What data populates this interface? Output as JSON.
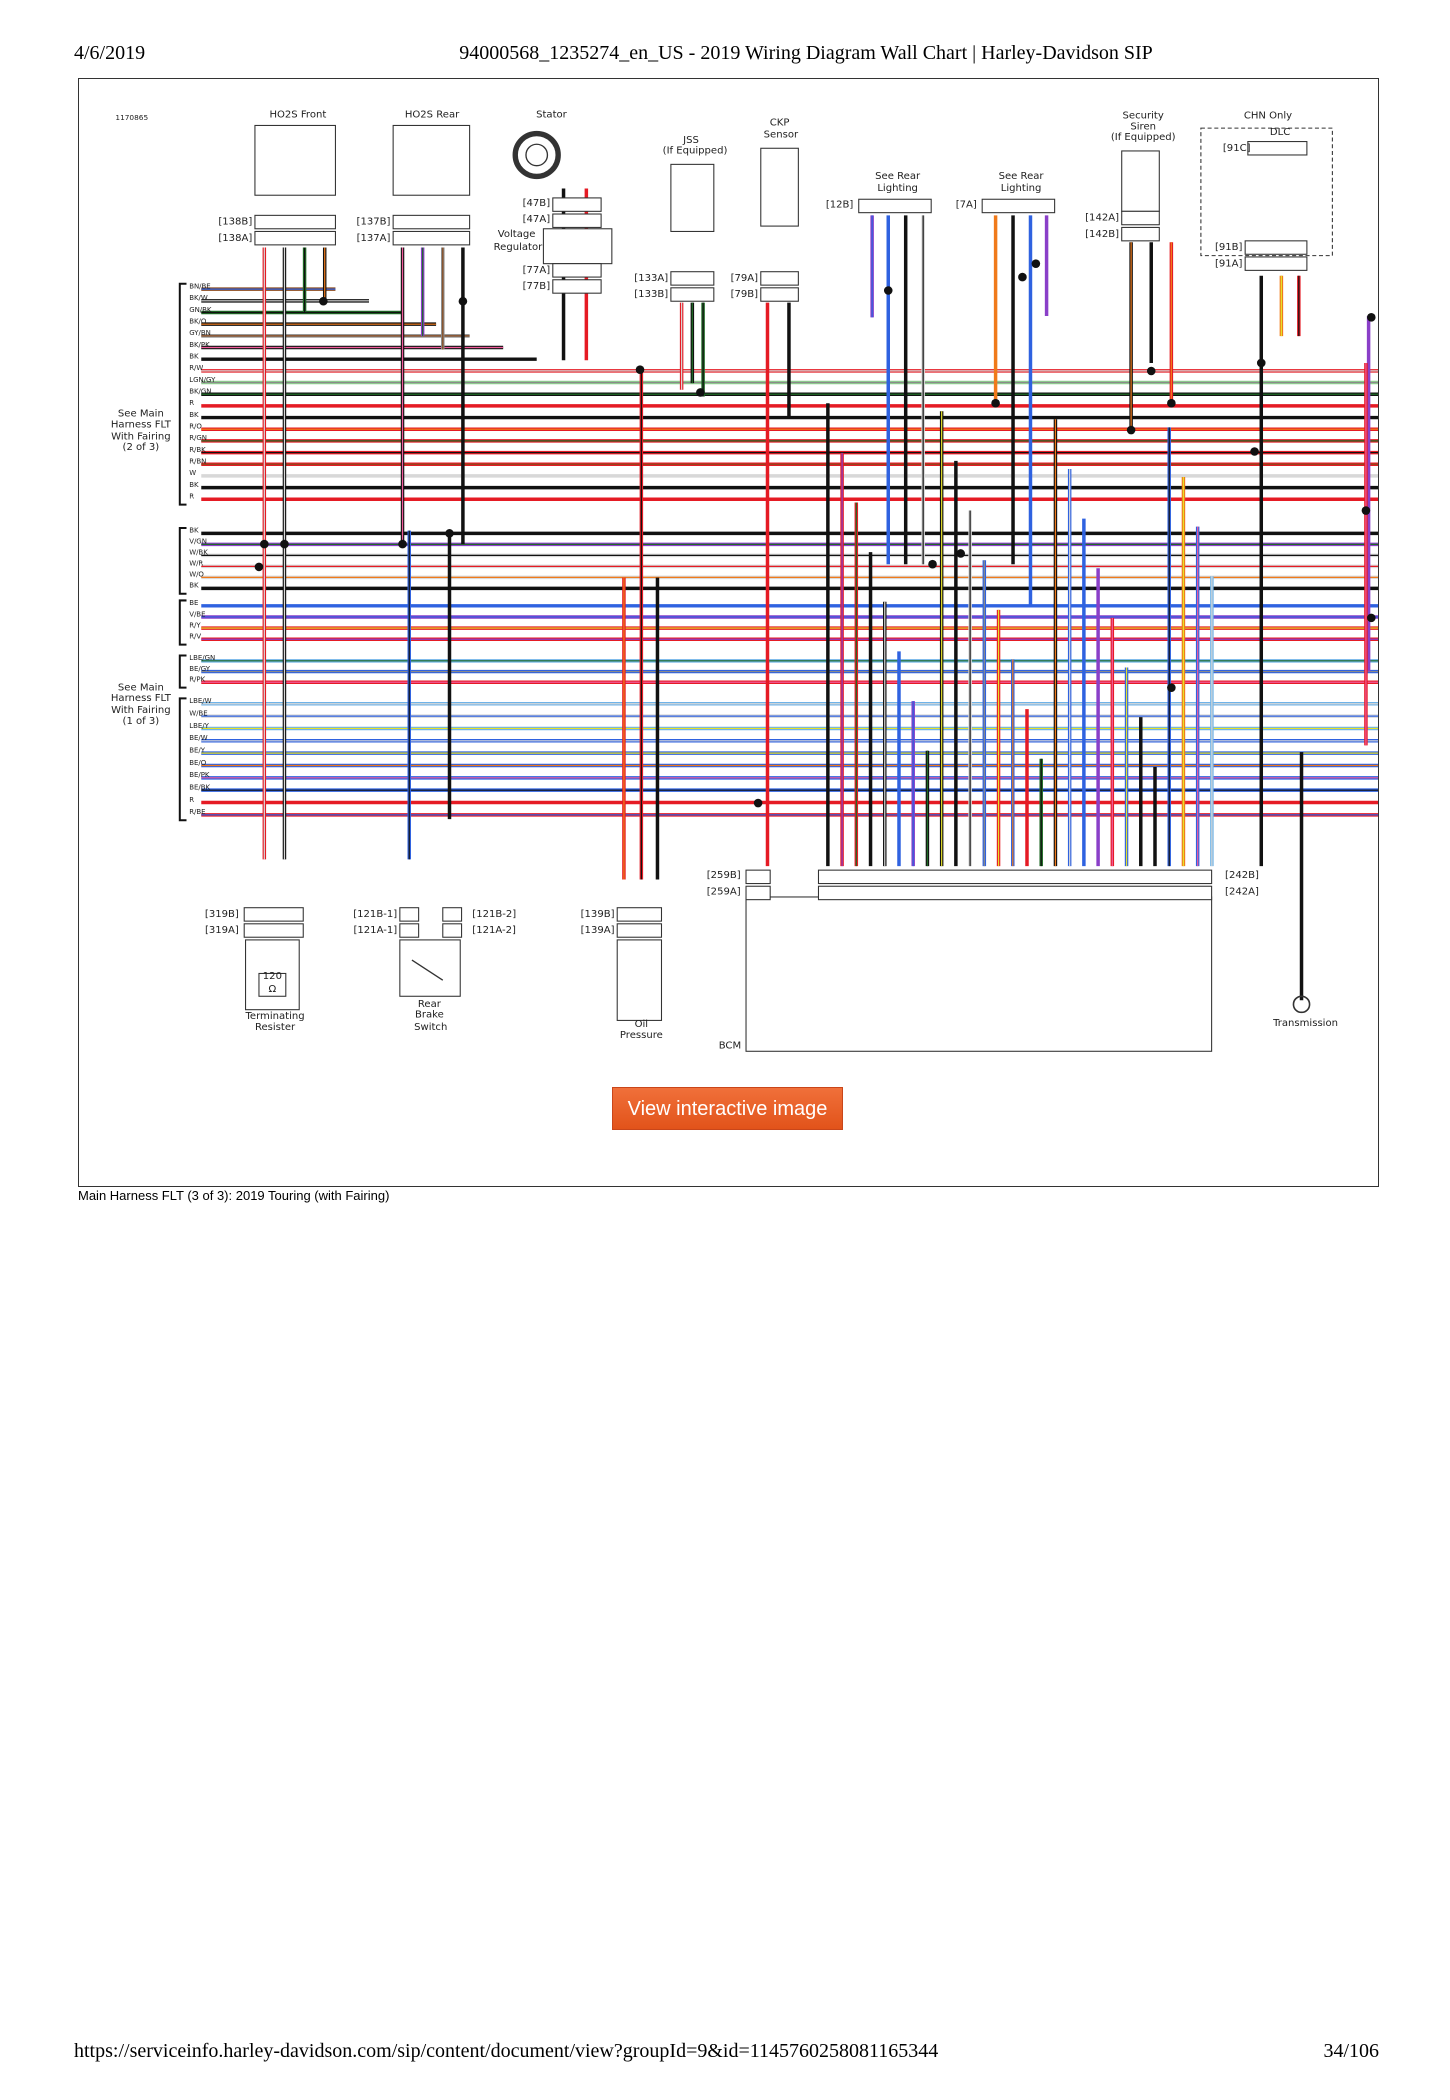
{
  "header": {
    "date": "4/6/2019",
    "title": "94000568_1235274_en_US - 2019 Wiring Diagram Wall Chart | Harley-Davidson SIP"
  },
  "diagram": {
    "figure_id": "1170865",
    "component_labels": [
      "HO2S Front",
      "HO2S Rear",
      "Stator",
      "JSS",
      "(If Equipped)",
      "CKP",
      "Sensor",
      "See Rear",
      "Lighting",
      "See Rear",
      "Lighting",
      "Security",
      "Siren",
      "(If Equipped)",
      "CHN Only",
      "DLC",
      "Voltage",
      "Regulator",
      "See Main",
      "Harness FLT",
      "With Fairing",
      "(2 of 3)",
      "See Main",
      "Harness FLT",
      "With Fairing",
      "(1 of 3)",
      "Terminating",
      "Resister",
      "Rear",
      "Brake",
      "Switch",
      "Oil",
      "Pressure",
      "BCM",
      "Transmission",
      "120",
      "Ω"
    ],
    "connector_labels": [
      "[138B]",
      "[138A]",
      "[137B]",
      "[137A]",
      "[47B]",
      "[47A]",
      "[77A]",
      "[77B]",
      "[133A]",
      "[133B]",
      "[79A]",
      "[79B]",
      "[12B]",
      "[7A]",
      "[142A]",
      "[142B]",
      "[91C]",
      "[91B]",
      "[91A]",
      "[319B]",
      "[319A]",
      "[121B-1]",
      "[121A-1]",
      "[121B-2]",
      "[121A-2]",
      "[139B]",
      "[139A]",
      "[259B]",
      "[259A]",
      "[242B]",
      "[242A]"
    ],
    "wire_groups": [
      [
        "BN/BE",
        "BK/W",
        "GN/BK",
        "BK/O",
        "GY/BN",
        "BK/PK",
        "BK",
        "R/W",
        "LGN/GY",
        "BK/GN",
        "R",
        "BK",
        "R/O",
        "R/GN",
        "R/BK",
        "R/BN",
        "W",
        "BK",
        "R"
      ],
      [
        "BK",
        "V/GN",
        "W/BK",
        "W/R",
        "W/O",
        "BK"
      ],
      [
        "BE",
        "V/BE",
        "R/Y",
        "R/V"
      ],
      [
        "LBE/GN",
        "BE/GY",
        "R/PK"
      ],
      [
        "LBE/W",
        "W/BE",
        "LBE/Y",
        "BE/W",
        "BE/Y",
        "BE/O",
        "BE/PK",
        "BE/BK",
        "R",
        "R/BE"
      ]
    ]
  },
  "button": "View interactive image",
  "caption": "Main Harness FLT (3 of 3): 2019 Touring (with Fairing)",
  "footer": {
    "url": "https://serviceinfo.harley-davidson.com/sip/content/document/view?groupId=9&id=1145760258081165344",
    "page": "34/106"
  }
}
